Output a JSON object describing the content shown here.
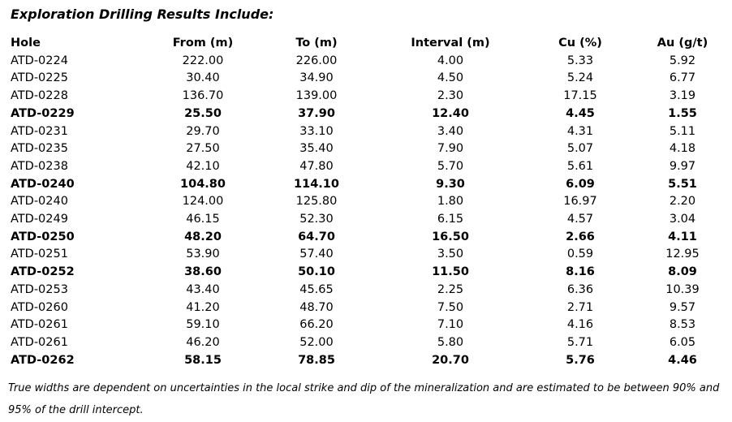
{
  "title": "Exploration Drilling Results Include:",
  "table": {
    "columns": [
      "Hole",
      "From (m)",
      "To (m)",
      "Interval (m)",
      "Cu (%)",
      "Au (g/t)"
    ],
    "rows": [
      {
        "hole": "ATD-0224",
        "from": "222.00",
        "to": "226.00",
        "interval": "4.00",
        "cu": "5.33",
        "au": "5.92",
        "bold": false
      },
      {
        "hole": "ATD-0225",
        "from": "30.40",
        "to": "34.90",
        "interval": "4.50",
        "cu": "5.24",
        "au": "6.77",
        "bold": false
      },
      {
        "hole": "ATD-0228",
        "from": "136.70",
        "to": "139.00",
        "interval": "2.30",
        "cu": "17.15",
        "au": "3.19",
        "bold": false
      },
      {
        "hole": "ATD-0229",
        "from": "25.50",
        "to": "37.90",
        "interval": "12.40",
        "cu": "4.45",
        "au": "1.55",
        "bold": true
      },
      {
        "hole": "ATD-0231",
        "from": "29.70",
        "to": "33.10",
        "interval": "3.40",
        "cu": "4.31",
        "au": "5.11",
        "bold": false
      },
      {
        "hole": "ATD-0235",
        "from": "27.50",
        "to": "35.40",
        "interval": "7.90",
        "cu": "5.07",
        "au": "4.18",
        "bold": false
      },
      {
        "hole": "ATD-0238",
        "from": "42.10",
        "to": "47.80",
        "interval": "5.70",
        "cu": "5.61",
        "au": "9.97",
        "bold": false
      },
      {
        "hole": "ATD-0240",
        "from": "104.80",
        "to": "114.10",
        "interval": "9.30",
        "cu": "6.09",
        "au": "5.51",
        "bold": true
      },
      {
        "hole": "ATD-0240",
        "from": "124.00",
        "to": "125.80",
        "interval": "1.80",
        "cu": "16.97",
        "au": "2.20",
        "bold": false
      },
      {
        "hole": "ATD-0249",
        "from": "46.15",
        "to": "52.30",
        "interval": "6.15",
        "cu": "4.57",
        "au": "3.04",
        "bold": false
      },
      {
        "hole": "ATD-0250",
        "from": "48.20",
        "to": "64.70",
        "interval": "16.50",
        "cu": "2.66",
        "au": "4.11",
        "bold": true
      },
      {
        "hole": "ATD-0251",
        "from": "53.90",
        "to": "57.40",
        "interval": "3.50",
        "cu": "0.59",
        "au": "12.95",
        "bold": false
      },
      {
        "hole": "ATD-0252",
        "from": "38.60",
        "to": "50.10",
        "interval": "11.50",
        "cu": "8.16",
        "au": "8.09",
        "bold": true
      },
      {
        "hole": "ATD-0253",
        "from": "43.40",
        "to": "45.65",
        "interval": "2.25",
        "cu": "6.36",
        "au": "10.39",
        "bold": false
      },
      {
        "hole": "ATD-0260",
        "from": "41.20",
        "to": "48.70",
        "interval": "7.50",
        "cu": "2.71",
        "au": "9.57",
        "bold": false
      },
      {
        "hole": "ATD-0261",
        "from": "59.10",
        "to": "66.20",
        "interval": "7.10",
        "cu": "4.16",
        "au": "8.53",
        "bold": false
      },
      {
        "hole": "ATD-0261",
        "from": "46.20",
        "to": "52.00",
        "interval": "5.80",
        "cu": "5.71",
        "au": "6.05",
        "bold": false
      },
      {
        "hole": "ATD-0262",
        "from": "58.15",
        "to": "78.85",
        "interval": "20.70",
        "cu": "5.76",
        "au": "4.46",
        "bold": true
      }
    ]
  },
  "footnote": "True widths are dependent on uncertainties in the local strike and dip of the mineralization and are estimated to be between 90% and 95% of the drill intercept.",
  "colors": {
    "text": "#000000",
    "background": "#ffffff"
  }
}
